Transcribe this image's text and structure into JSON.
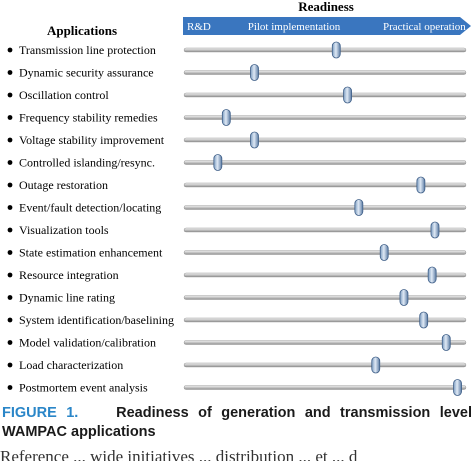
{
  "chart_data": {
    "type": "scatter",
    "title": "Readiness",
    "ylabel": "Applications",
    "stages": [
      "R&D",
      "Pilot implementation",
      "Practical operation"
    ],
    "xlim": [
      0,
      1
    ],
    "grid": false,
    "categories": [
      "Transmission line protection",
      "Dynamic security assurance",
      "Oscillation control",
      "Frequency stability remedies",
      "Voltage stability improvement",
      "Controlled islanding/resync.",
      "Outage restoration",
      "Event/fault detection/locating",
      "Visualization tools",
      "State estimation enhancement",
      "Resource integration",
      "Dynamic line rating",
      "System identification/baselining",
      "Model validation/calibration",
      "Load characterization",
      "Postmortem event analysis"
    ],
    "values": [
      0.54,
      0.25,
      0.58,
      0.15,
      0.25,
      0.12,
      0.84,
      0.62,
      0.89,
      0.71,
      0.88,
      0.78,
      0.85,
      0.93,
      0.68,
      0.97
    ]
  },
  "caption": {
    "label": "FIGURE 1.",
    "text": "Readiness of generation and transmission level WAMPAC applications"
  },
  "cutoff_text": "Reference ... wide initiatives ... distribution ... et ... d"
}
